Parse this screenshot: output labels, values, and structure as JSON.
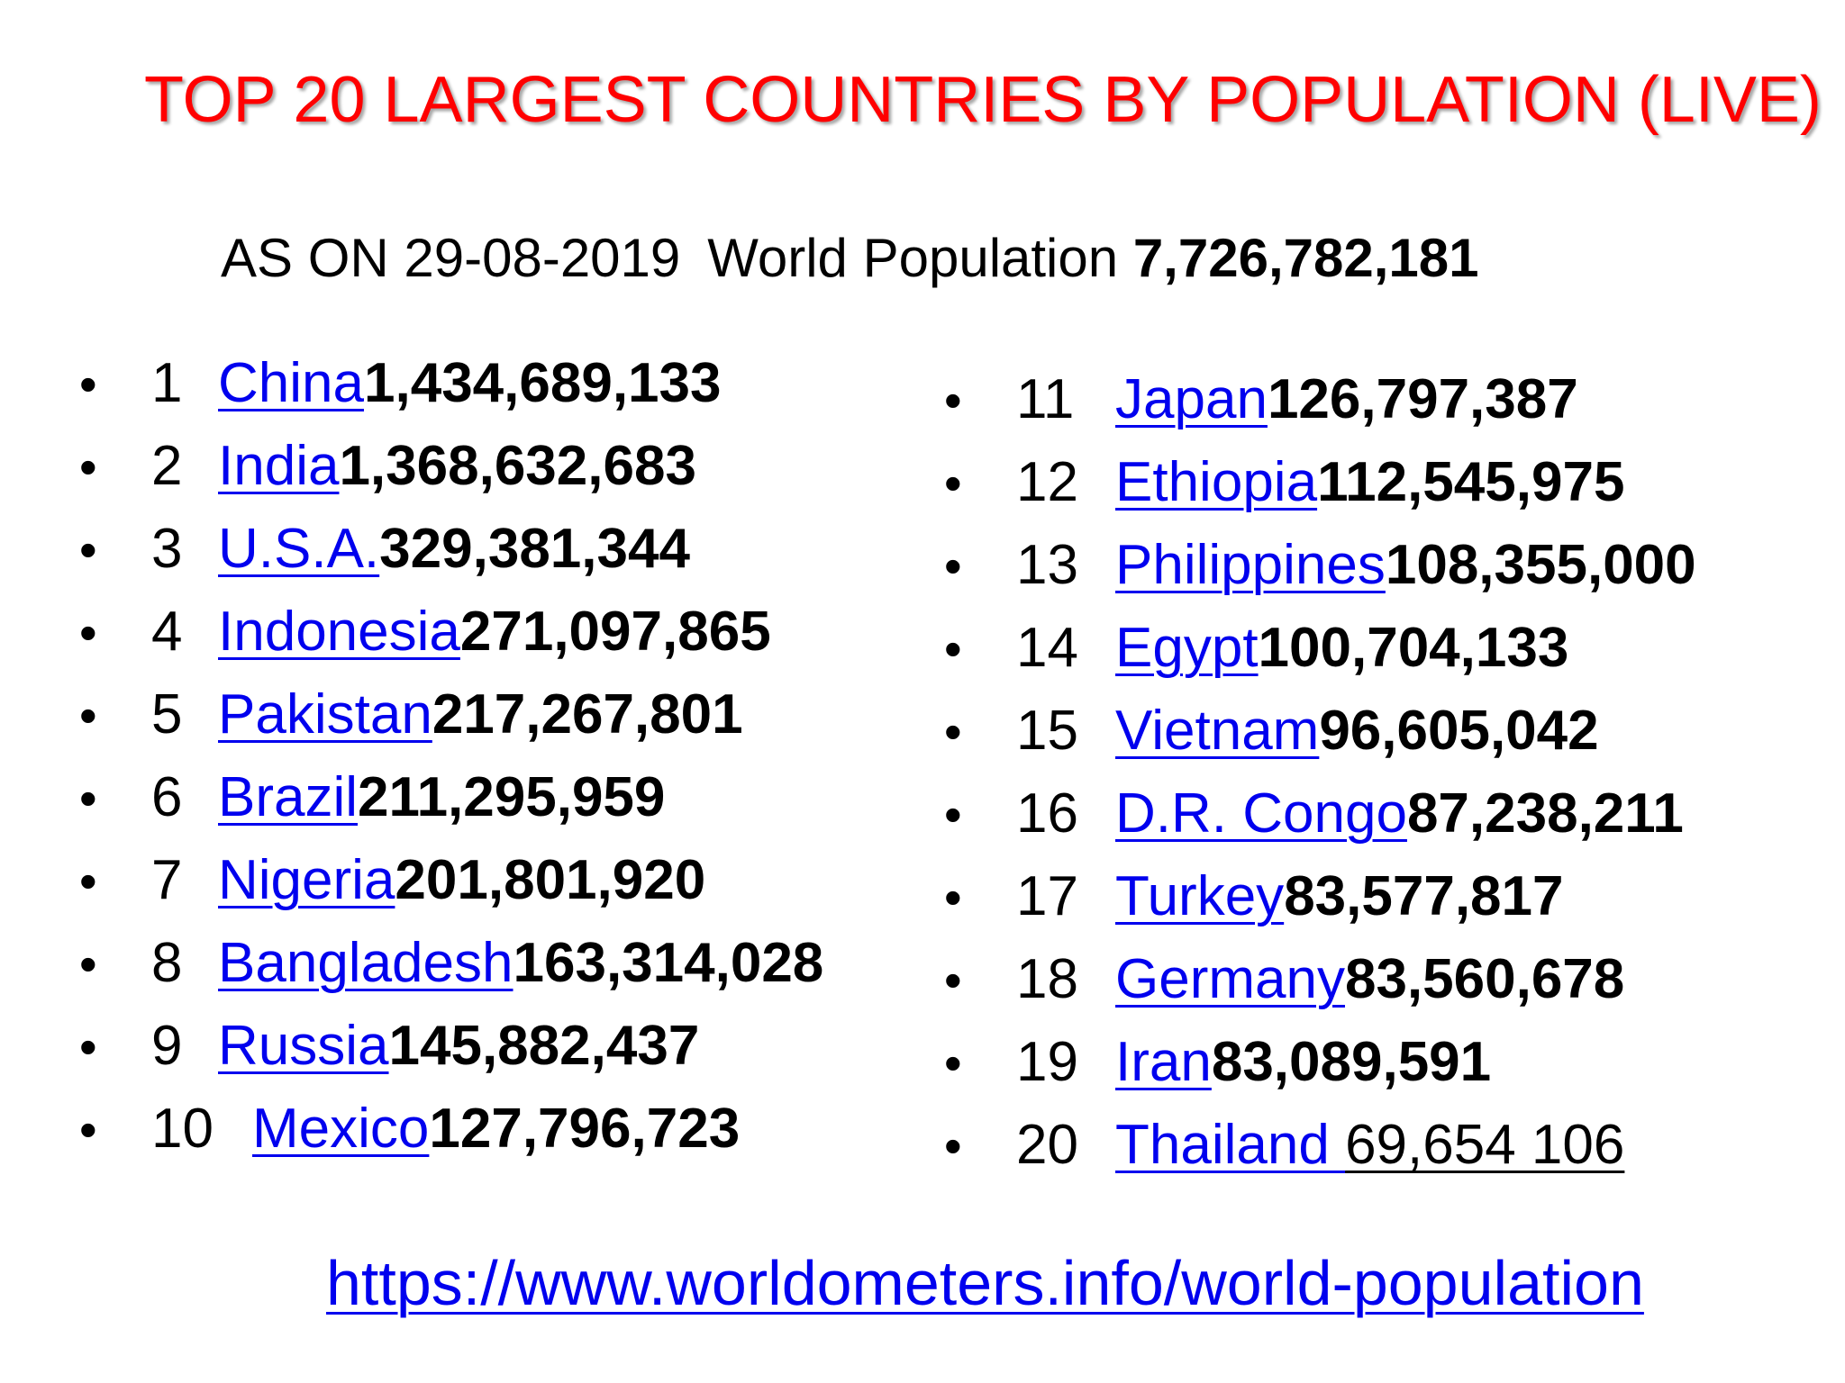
{
  "title": "TOP 20 LARGEST COUNTRIES BY POPULATION (LIVE)",
  "subtitle": {
    "as_on": "AS ON 29-08-2019",
    "world_label": "World Population",
    "world_value": "7,726,782,181"
  },
  "left_list": [
    {
      "rank": "1",
      "country": "China",
      "population": "1,434,689,133"
    },
    {
      "rank": "2",
      "country": "India",
      "population": "1,368,632,683"
    },
    {
      "rank": "3",
      "country": "U.S.A.",
      "population": "329,381,344"
    },
    {
      "rank": "4",
      "country": "Indonesia",
      "population": "271,097,865"
    },
    {
      "rank": "5",
      "country": "Pakistan",
      "population": "217,267,801"
    },
    {
      "rank": "6",
      "country": "Brazil",
      "population": "211,295,959"
    },
    {
      "rank": "7",
      "country": "Nigeria",
      "population": "201,801,920"
    },
    {
      "rank": "8",
      "country": "Bangladesh",
      "population": "163,314,028"
    },
    {
      "rank": "9",
      "country": "Russia",
      "population": "145,882,437"
    },
    {
      "rank": "10",
      "country": "Mexico",
      "population": "127,796,723"
    }
  ],
  "right_list": [
    {
      "rank": "11",
      "country": "Japan",
      "population": "126,797,387"
    },
    {
      "rank": "12",
      "country": "Ethiopia",
      "population": "112,545,975"
    },
    {
      "rank": "13",
      "country": "Philippines",
      "population": "108,355,000"
    },
    {
      "rank": "14",
      "country": "Egypt",
      "population": "100,704,133"
    },
    {
      "rank": "15",
      "country": "Vietnam",
      "population": "96,605,042"
    },
    {
      "rank": "16",
      "country": "D.R. Congo",
      "population": "87,238,211"
    },
    {
      "rank": "17",
      "country": "Turkey",
      "population": "83,577,817"
    },
    {
      "rank": "18",
      "country": "Germany",
      "population": "83,560,678"
    },
    {
      "rank": "19",
      "country": "Iran",
      "population": "83,089,591"
    },
    {
      "rank": "20",
      "country": "Thailand ",
      "population": "69,654 106"
    }
  ],
  "source_url": "https://www.worldometers.info/world-population",
  "colors": {
    "title": "#ff0000",
    "link": "#0000ee",
    "text": "#000000"
  }
}
